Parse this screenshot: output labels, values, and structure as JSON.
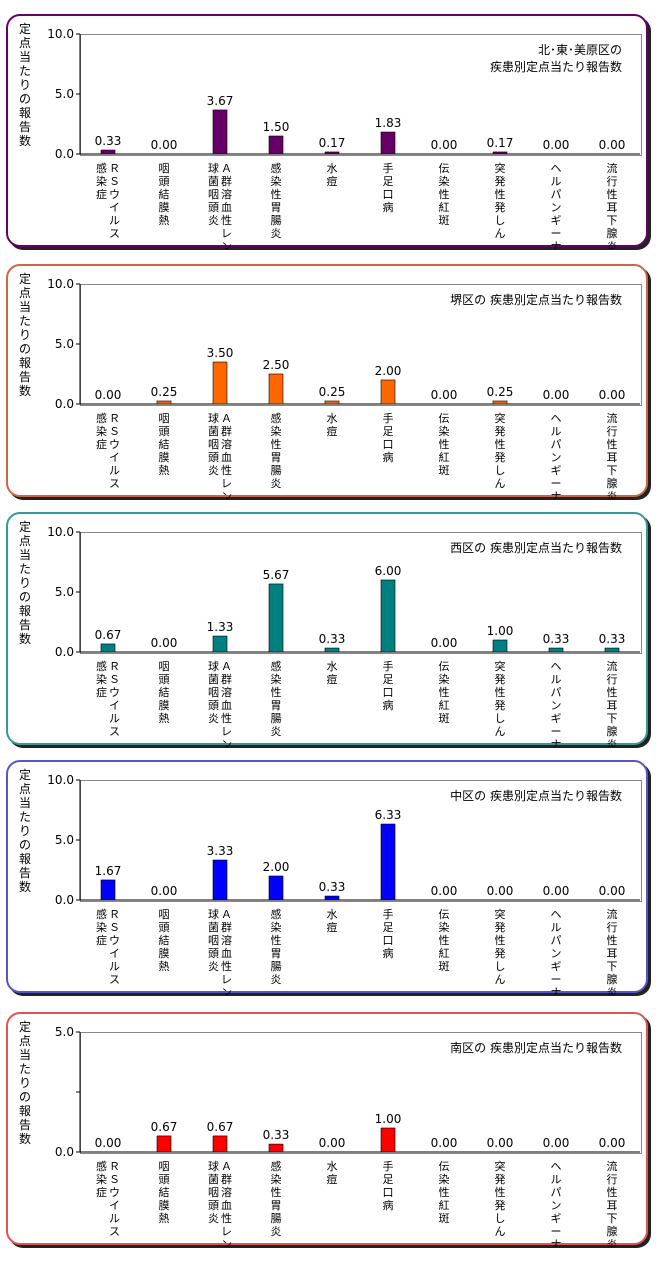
{
  "chart_data": [
    {
      "type": "bar",
      "title_lines": [
        "北･東･美原区の",
        "疾患別定点当たり報告数"
      ],
      "ylabel": "定点当たりの報告数",
      "ylim": [
        0,
        10
      ],
      "yticks": [
        "10.0",
        "5.0",
        "0.0"
      ],
      "categories": [
        "ＲＳウイルス感染症",
        "咽頭結膜熱",
        "Ａ群溶血性レンサ球菌咽頭炎",
        "感染性胃腸炎",
        "水痘",
        "手足口病",
        "伝染性紅斑",
        "突発性発しん",
        "ヘルパンギーナ",
        "流行性耳下腺炎"
      ],
      "category_lines": [
        [
          "ＲＳウイルス",
          "感染症"
        ],
        [
          "咽頭結膜熱"
        ],
        [
          "Ａ群溶血性レンサ",
          "球菌咽頭炎"
        ],
        [
          "感染性胃腸炎"
        ],
        [
          "水痘"
        ],
        [
          "手足口病"
        ],
        [
          "伝染性紅斑"
        ],
        [
          "突発性発しん"
        ],
        [
          "ヘルパンギーナ"
        ],
        [
          "流行性耳下腺炎"
        ]
      ],
      "values": [
        0.33,
        0.0,
        3.67,
        1.5,
        0.17,
        1.83,
        0.0,
        0.17,
        0.0,
        0.0
      ],
      "labels": [
        "0.33",
        "0.00",
        "3.67",
        "1.50",
        "0.17",
        "1.83",
        "0.00",
        "0.17",
        "0.00",
        "0.00"
      ],
      "bar_color": "#660066",
      "border_color": "#660066",
      "grid": false,
      "legend": "none"
    },
    {
      "type": "bar",
      "title_lines": [
        "堺区の 疾患別定点当たり報告数"
      ],
      "ylabel": "定点当たりの報告数",
      "ylim": [
        0,
        10
      ],
      "yticks": [
        "10.0",
        "5.0",
        "0.0"
      ],
      "categories": [
        "ＲＳウイルス感染症",
        "咽頭結膜熱",
        "Ａ群溶血性レンサ球菌咽頭炎",
        "感染性胃腸炎",
        "水痘",
        "手足口病",
        "伝染性紅斑",
        "突発性発しん",
        "ヘルパンギーナ",
        "流行性耳下腺炎"
      ],
      "category_lines": [
        [
          "ＲＳウイルス",
          "感染症"
        ],
        [
          "咽頭結膜熱"
        ],
        [
          "Ａ群溶血性レンサ",
          "球菌咽頭炎"
        ],
        [
          "感染性胃腸炎"
        ],
        [
          "水痘"
        ],
        [
          "手足口病"
        ],
        [
          "伝染性紅斑"
        ],
        [
          "突発性発しん"
        ],
        [
          "ヘルパンギーナ"
        ],
        [
          "流行性耳下腺炎"
        ]
      ],
      "values": [
        0.0,
        0.25,
        3.5,
        2.5,
        0.25,
        2.0,
        0.0,
        0.25,
        0.0,
        0.0
      ],
      "labels": [
        "0.00",
        "0.25",
        "3.50",
        "2.50",
        "0.25",
        "2.00",
        "0.00",
        "0.25",
        "0.00",
        "0.00"
      ],
      "bar_color": "#ff6600",
      "border_color": "#cc6644",
      "grid": false,
      "legend": "none"
    },
    {
      "type": "bar",
      "title_lines": [
        "西区の 疾患別定点当たり報告数"
      ],
      "ylabel": "定点当たりの報告数",
      "ylim": [
        0,
        10
      ],
      "yticks": [
        "10.0",
        "5.0",
        "0.0"
      ],
      "categories": [
        "ＲＳウイルス感染症",
        "咽頭結膜熱",
        "Ａ群溶血性レンサ球菌咽頭炎",
        "感染性胃腸炎",
        "水痘",
        "手足口病",
        "伝染性紅斑",
        "突発性発しん",
        "ヘルパンギーナ",
        "流行性耳下腺炎"
      ],
      "category_lines": [
        [
          "ＲＳウイルス",
          "感染症"
        ],
        [
          "咽頭結膜熱"
        ],
        [
          "Ａ群溶血性レンサ",
          "球菌咽頭炎"
        ],
        [
          "感染性胃腸炎"
        ],
        [
          "水痘"
        ],
        [
          "手足口病"
        ],
        [
          "伝染性紅斑"
        ],
        [
          "突発性発しん"
        ],
        [
          "ヘルパンギーナ"
        ],
        [
          "流行性耳下腺炎"
        ]
      ],
      "values": [
        0.67,
        0.0,
        1.33,
        5.67,
        0.33,
        6.0,
        0.0,
        1.0,
        0.33,
        0.33
      ],
      "labels": [
        "0.67",
        "0.00",
        "1.33",
        "5.67",
        "0.33",
        "6.00",
        "0.00",
        "1.00",
        "0.33",
        "0.33"
      ],
      "bar_color": "#008080",
      "border_color": "#339999",
      "grid": false,
      "legend": "none"
    },
    {
      "type": "bar",
      "title_lines": [
        "中区の 疾患別定点当たり報告数"
      ],
      "ylabel": "定点当たりの報告数",
      "ylim": [
        0,
        10
      ],
      "yticks": [
        "10.0",
        "5.0",
        "0.0"
      ],
      "categories": [
        "ＲＳウイルス感染症",
        "咽頭結膜熱",
        "Ａ群溶血性レンサ球菌咽頭炎",
        "感染性胃腸炎",
        "水痘",
        "手足口病",
        "伝染性紅斑",
        "突発性発しん",
        "ヘルパンギーナ",
        "流行性耳下腺炎"
      ],
      "category_lines": [
        [
          "ＲＳウイルス",
          "感染症"
        ],
        [
          "咽頭結膜熱"
        ],
        [
          "Ａ群溶血性レンサ",
          "球菌咽頭炎"
        ],
        [
          "感染性胃腸炎"
        ],
        [
          "水痘"
        ],
        [
          "手足口病"
        ],
        [
          "伝染性紅斑"
        ],
        [
          "突発性発しん"
        ],
        [
          "ヘルパンギーナ"
        ],
        [
          "流行性耳下腺炎"
        ]
      ],
      "values": [
        1.67,
        0.0,
        3.33,
        2.0,
        0.33,
        6.33,
        0.0,
        0.0,
        0.0,
        0.0
      ],
      "labels": [
        "1.67",
        "0.00",
        "3.33",
        "2.00",
        "0.33",
        "6.33",
        "0.00",
        "0.00",
        "0.00",
        "0.00"
      ],
      "bar_color": "#0000ff",
      "border_color": "#5555cc",
      "grid": false,
      "legend": "none"
    },
    {
      "type": "bar",
      "title_lines": [
        "南区の 疾患別定点当たり報告数"
      ],
      "ylabel": "定点当たりの報告数",
      "ylim": [
        0,
        5
      ],
      "yticks": [
        "5.0",
        "",
        "0.0"
      ],
      "categories": [
        "ＲＳウイルス感染症",
        "咽頭結膜熱",
        "Ａ群溶血性レンサ球菌咽頭炎",
        "感染性胃腸炎",
        "水痘",
        "手足口病",
        "伝染性紅斑",
        "突発性発しん",
        "ヘルパンギーナ",
        "流行性耳下腺炎"
      ],
      "category_lines": [
        [
          "ＲＳウイルス",
          "感染症"
        ],
        [
          "咽頭結膜熱"
        ],
        [
          "Ａ群溶血性レンサ",
          "球菌咽頭炎"
        ],
        [
          "感染性胃腸炎"
        ],
        [
          "水痘"
        ],
        [
          "手足口病"
        ],
        [
          "伝染性紅斑"
        ],
        [
          "突発性発しん"
        ],
        [
          "ヘルパンギーナ"
        ],
        [
          "流行性耳下腺炎"
        ]
      ],
      "values": [
        0.0,
        0.67,
        0.67,
        0.33,
        0.0,
        1.0,
        0.0,
        0.0,
        0.0,
        0.0
      ],
      "labels": [
        "0.00",
        "0.67",
        "0.67",
        "0.33",
        "0.00",
        "1.00",
        "0.00",
        "0.00",
        "0.00",
        "0.00"
      ],
      "bar_color": "#ff0000",
      "border_color": "#dd5555",
      "grid": false,
      "legend": "none"
    }
  ]
}
